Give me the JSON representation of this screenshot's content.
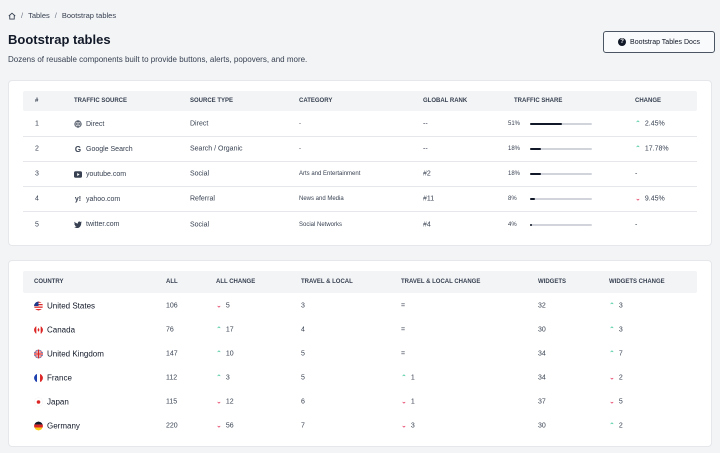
{
  "breadcrumb": {
    "items": [
      "Tables",
      "Bootstrap tables"
    ]
  },
  "header": {
    "title": "Bootstrap tables",
    "subtitle": "Dozens of reusable components built to provide buttons, alerts, popovers, and more.",
    "docs_button": "Bootstrap Tables Docs"
  },
  "traffic": {
    "columns": [
      "#",
      "TRAFFIC SOURCE",
      "SOURCE TYPE",
      "CATEGORY",
      "GLOBAL RANK",
      "TRAFFIC SHARE",
      "CHANGE"
    ],
    "rows": [
      {
        "num": "1",
        "icon": "globe-icon",
        "source": "Direct",
        "type": "Direct",
        "category": "-",
        "rank": "--",
        "share_label": "51%",
        "share": 51,
        "change": "2.45%",
        "dir": "up"
      },
      {
        "num": "2",
        "icon": "google-icon",
        "source": "Google Search",
        "type": "Search / Organic",
        "category": "-",
        "rank": "--",
        "share_label": "18%",
        "share": 18,
        "change": "17.78%",
        "dir": "up"
      },
      {
        "num": "3",
        "icon": "youtube-icon",
        "source": "youtube.com",
        "type": "Social",
        "category": "Arts and Entertainment",
        "rank": "#2",
        "share_label": "18%",
        "share": 18,
        "change": "-",
        "dir": "none"
      },
      {
        "num": "4",
        "icon": "yahoo-icon",
        "source": "yahoo.com",
        "type": "Referral",
        "category": "News and Media",
        "rank": "#11",
        "share_label": "8%",
        "share": 8,
        "change": "9.45%",
        "dir": "down"
      },
      {
        "num": "5",
        "icon": "twitter-icon",
        "source": "twitter.com",
        "type": "Social",
        "category": "Social Networks",
        "rank": "#4",
        "share_label": "4%",
        "share": 4,
        "change": "-",
        "dir": "none"
      }
    ]
  },
  "countries": {
    "columns": [
      "COUNTRY",
      "ALL",
      "ALL CHANGE",
      "TRAVEL & LOCAL",
      "TRAVEL & LOCAL CHANGE",
      "WIDGETS",
      "WIDGETS CHANGE"
    ],
    "rows": [
      {
        "icon": "us-flag-icon",
        "country": "United States",
        "all": "106",
        "all_change": "5",
        "all_dir": "down",
        "travel": "3",
        "travel_change": "=",
        "travel_dir": "none",
        "widgets": "32",
        "widgets_change": "3",
        "widgets_dir": "up"
      },
      {
        "icon": "canada-flag-icon",
        "country": "Canada",
        "all": "76",
        "all_change": "17",
        "all_dir": "up",
        "travel": "4",
        "travel_change": "=",
        "travel_dir": "none",
        "widgets": "30",
        "widgets_change": "3",
        "widgets_dir": "up"
      },
      {
        "icon": "uk-flag-icon",
        "country": "United Kingdom",
        "all": "147",
        "all_change": "10",
        "all_dir": "up",
        "travel": "5",
        "travel_change": "=",
        "travel_dir": "none",
        "widgets": "34",
        "widgets_change": "7",
        "widgets_dir": "up"
      },
      {
        "icon": "france-flag-icon",
        "country": "France",
        "all": "112",
        "all_change": "3",
        "all_dir": "up",
        "travel": "5",
        "travel_change": "1",
        "travel_dir": "up",
        "widgets": "34",
        "widgets_change": "2",
        "widgets_dir": "down"
      },
      {
        "icon": "japan-flag-icon",
        "country": "Japan",
        "all": "115",
        "all_change": "12",
        "all_dir": "down",
        "travel": "6",
        "travel_change": "1",
        "travel_dir": "down",
        "widgets": "37",
        "widgets_change": "5",
        "widgets_dir": "down"
      },
      {
        "icon": "germany-flag-icon",
        "country": "Germany",
        "all": "220",
        "all_change": "56",
        "all_dir": "down",
        "travel": "7",
        "travel_change": "3",
        "travel_dir": "down",
        "widgets": "30",
        "widgets_change": "2",
        "widgets_dir": "up"
      }
    ]
  },
  "colors": {
    "positive": "#10b981",
    "negative": "#e11d48",
    "bar": "#111827"
  }
}
